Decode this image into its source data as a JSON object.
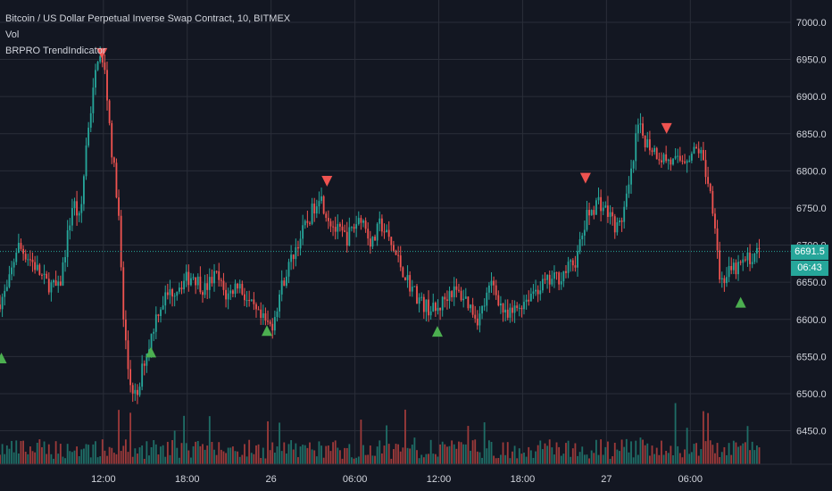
{
  "header": {
    "symbol_line": "Bitcoin / US Dollar Perpetual Inverse Swap Contract, 10, BITMEX",
    "vol_label": "Vol",
    "indicator_label": "BRPRO TrendIndicator"
  },
  "badges": {
    "last_price": "6691.5",
    "countdown": "06:43"
  },
  "colors": {
    "background": "#131722",
    "grid": "#2a2e39",
    "up": "#26a69a",
    "down": "#ef5350",
    "vol_up": "#1f6d66",
    "vol_down": "#9c3a3a",
    "text": "#d1d4dc"
  },
  "chart_data": {
    "type": "candlestick",
    "y_axis": {
      "ticks": [
        6450,
        6500,
        6550,
        6600,
        6650,
        6700,
        6750,
        6800,
        6850,
        6900,
        6950,
        7000
      ],
      "tick_labels": [
        "6450.0",
        "6500.0",
        "6550.0",
        "6600.0",
        "6650.0",
        "6700.0",
        "6750.0",
        "6800.0",
        "6850.0",
        "6900.0",
        "6950.0",
        "7000.0"
      ],
      "range": [
        6405,
        7030
      ],
      "position": "right"
    },
    "x_axis": {
      "ticks": [
        {
          "label": "12:00",
          "hours": 12
        },
        {
          "label": "18:00",
          "hours": 18
        },
        {
          "label": "26",
          "hours": 24
        },
        {
          "label": "06:00",
          "hours": 30
        },
        {
          "label": "12:00",
          "hours": 36
        },
        {
          "label": "18:00",
          "hours": 42
        },
        {
          "label": "27",
          "hours": 48
        },
        {
          "label": "06:00",
          "hours": 54
        }
      ],
      "range_hours": [
        4.6,
        61.2
      ]
    },
    "last_price": 6691.5,
    "price_path": [
      [
        4.6,
        6620
      ],
      [
        5.3,
        6640
      ],
      [
        6.0,
        6700
      ],
      [
        7.0,
        6680
      ],
      [
        8.0,
        6650
      ],
      [
        9.0,
        6640
      ],
      [
        10.0,
        6760
      ],
      [
        10.5,
        6730
      ],
      [
        11.0,
        6850
      ],
      [
        11.4,
        6900
      ],
      [
        11.8,
        6960
      ],
      [
        12.3,
        6930
      ],
      [
        12.8,
        6820
      ],
      [
        13.2,
        6760
      ],
      [
        13.6,
        6600
      ],
      [
        14.0,
        6520
      ],
      [
        14.6,
        6490
      ],
      [
        15.0,
        6540
      ],
      [
        15.5,
        6570
      ],
      [
        16.0,
        6610
      ],
      [
        16.6,
        6630
      ],
      [
        17.2,
        6640
      ],
      [
        17.8,
        6650
      ],
      [
        18.6,
        6660
      ],
      [
        19.4,
        6640
      ],
      [
        20.2,
        6660
      ],
      [
        21.0,
        6630
      ],
      [
        21.8,
        6650
      ],
      [
        22.6,
        6620
      ],
      [
        23.4,
        6600
      ],
      [
        24.2,
        6590
      ],
      [
        25.0,
        6650
      ],
      [
        26.0,
        6700
      ],
      [
        27.0,
        6740
      ],
      [
        27.6,
        6770
      ],
      [
        28.2,
        6740
      ],
      [
        28.8,
        6720
      ],
      [
        29.6,
        6710
      ],
      [
        30.6,
        6740
      ],
      [
        31.4,
        6700
      ],
      [
        32.0,
        6730
      ],
      [
        33.0,
        6690
      ],
      [
        34.0,
        6650
      ],
      [
        35.0,
        6620
      ],
      [
        36.0,
        6610
      ],
      [
        37.0,
        6640
      ],
      [
        38.0,
        6630
      ],
      [
        39.0,
        6600
      ],
      [
        40.0,
        6650
      ],
      [
        41.0,
        6600
      ],
      [
        42.0,
        6620
      ],
      [
        43.0,
        6640
      ],
      [
        44.0,
        6650
      ],
      [
        45.0,
        6660
      ],
      [
        46.0,
        6680
      ],
      [
        46.8,
        6740
      ],
      [
        47.6,
        6760
      ],
      [
        48.4,
        6740
      ],
      [
        49.0,
        6720
      ],
      [
        49.6,
        6760
      ],
      [
        50.0,
        6800
      ],
      [
        50.4,
        6860
      ],
      [
        51.0,
        6840
      ],
      [
        52.0,
        6820
      ],
      [
        53.0,
        6810
      ],
      [
        54.0,
        6820
      ],
      [
        54.8,
        6830
      ],
      [
        55.4,
        6790
      ],
      [
        55.9,
        6740
      ],
      [
        56.3,
        6650
      ],
      [
        56.8,
        6660
      ],
      [
        57.6,
        6670
      ],
      [
        58.2,
        6680
      ],
      [
        59.0,
        6690
      ]
    ],
    "markers": [
      {
        "type": "sell",
        "hours": 11.9,
        "price": 6958
      },
      {
        "type": "buy",
        "hours": 4.7,
        "price": 6548
      },
      {
        "type": "buy",
        "hours": 15.4,
        "price": 6556
      },
      {
        "type": "buy",
        "hours": 23.7,
        "price": 6585
      },
      {
        "type": "sell",
        "hours": 28.0,
        "price": 6786
      },
      {
        "type": "buy",
        "hours": 35.9,
        "price": 6584
      },
      {
        "type": "sell",
        "hours": 46.5,
        "price": 6790
      },
      {
        "type": "sell",
        "hours": 52.3,
        "price": 6857
      },
      {
        "type": "buy",
        "hours": 57.6,
        "price": 6623
      }
    ]
  }
}
